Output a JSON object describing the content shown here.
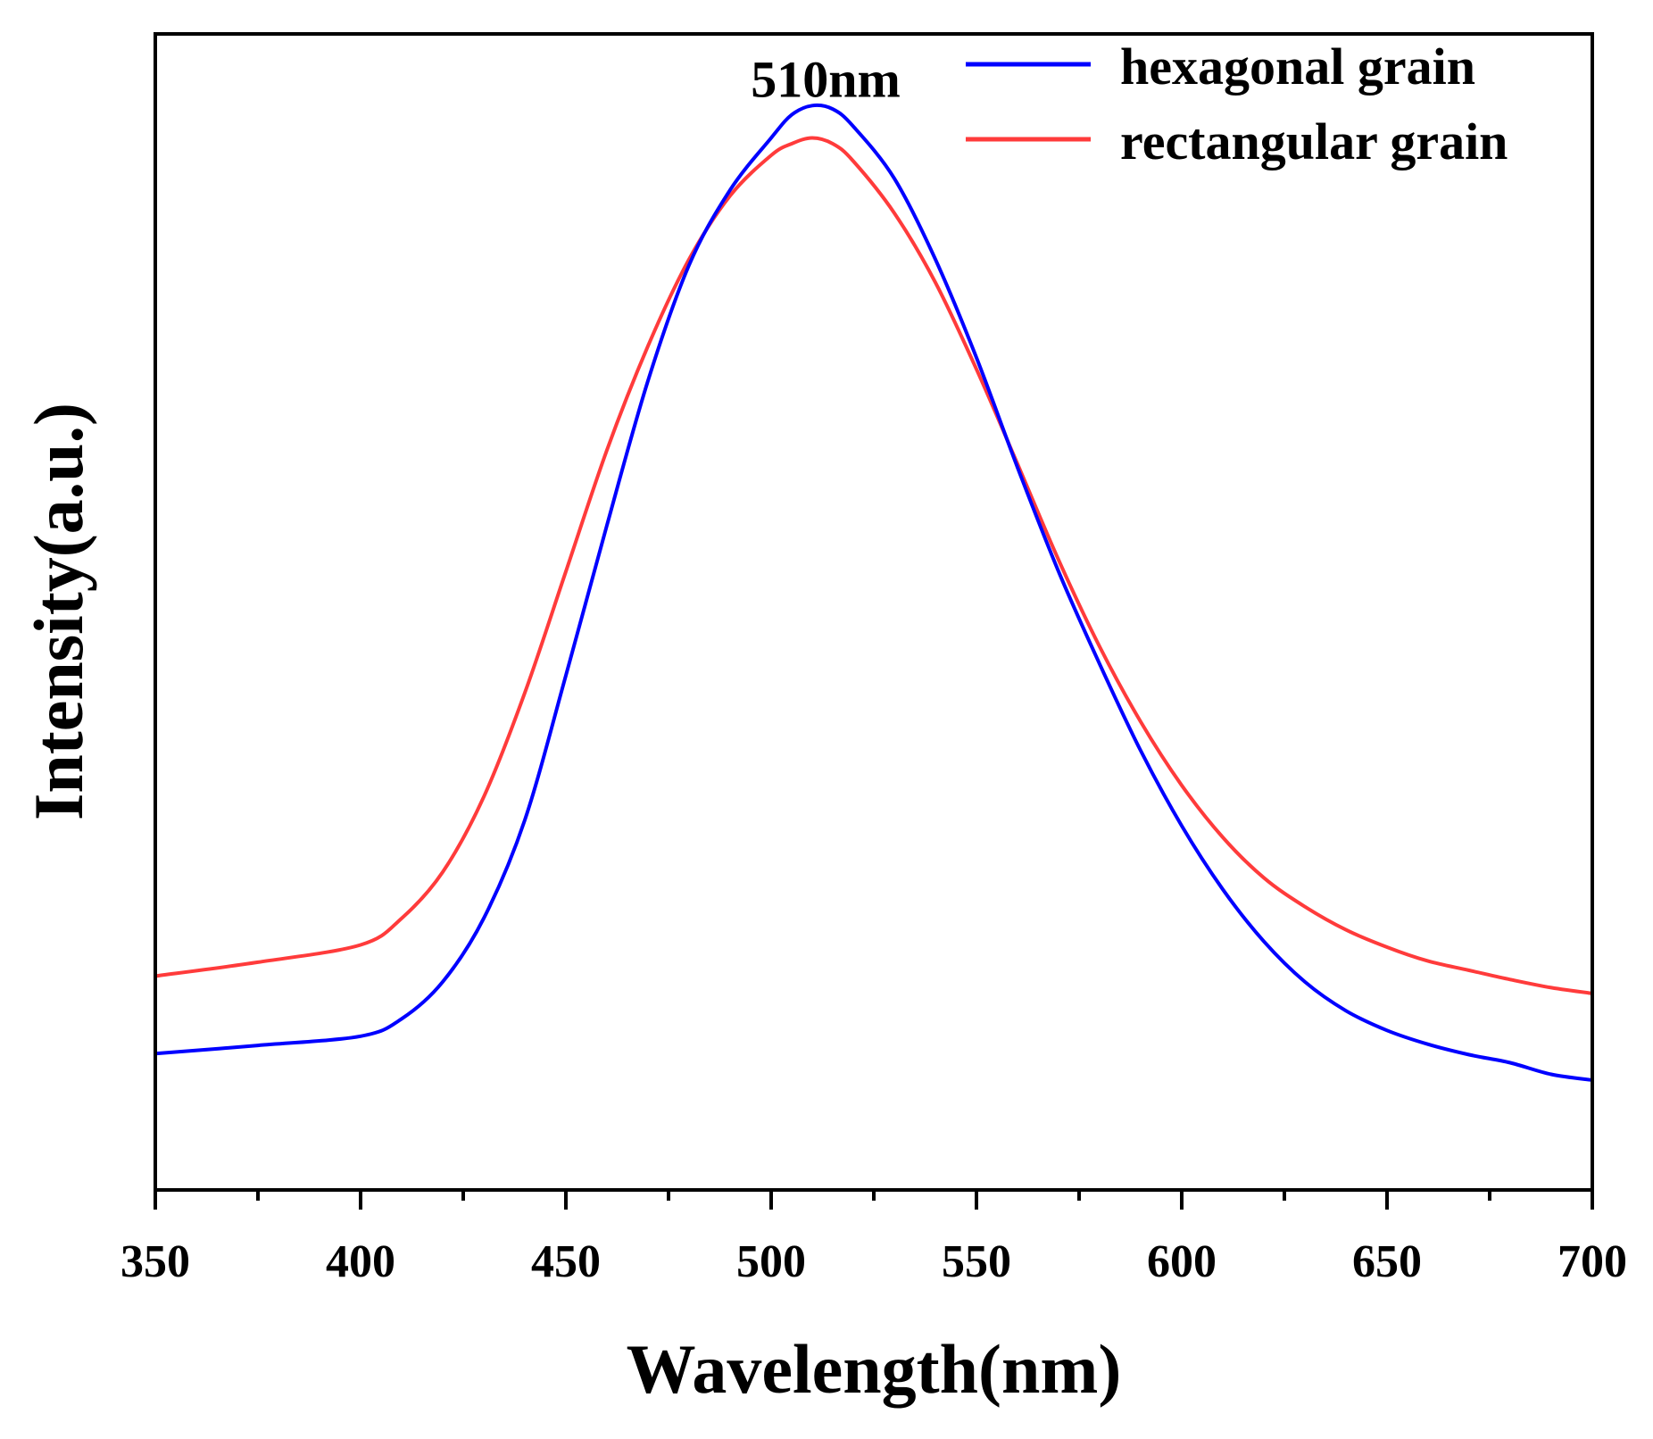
{
  "chart_data": {
    "type": "line",
    "title": "",
    "xlabel": "Wavelength(nm)",
    "ylabel": "Intensity(a.u.)",
    "xlim": [
      350,
      700
    ],
    "ylim": [
      0,
      1
    ],
    "xticks": [
      350,
      400,
      450,
      500,
      550,
      600,
      650,
      700
    ],
    "xtick_labels": [
      "350",
      "400",
      "450",
      "500",
      "550",
      "600",
      "650",
      "700"
    ],
    "yticks_shown": false,
    "legend_position": "top-right",
    "annotations": [
      {
        "text": "510nm",
        "x": 510,
        "y": 0.93
      }
    ],
    "series": [
      {
        "name": "hexagonal grain",
        "color": "#0000ff",
        "x": [
          350,
          375,
          400,
          410,
          420,
          430,
          440,
          450,
          460,
          470,
          480,
          490,
          500,
          505,
          510,
          515,
          520,
          530,
          540,
          550,
          560,
          570,
          580,
          590,
          600,
          610,
          620,
          630,
          640,
          650,
          660,
          670,
          680,
          690,
          700
        ],
        "y": [
          0.118,
          0.125,
          0.133,
          0.148,
          0.18,
          0.235,
          0.32,
          0.445,
          0.575,
          0.7,
          0.8,
          0.865,
          0.91,
          0.93,
          0.938,
          0.935,
          0.92,
          0.875,
          0.805,
          0.72,
          0.625,
          0.535,
          0.455,
          0.38,
          0.315,
          0.26,
          0.215,
          0.18,
          0.155,
          0.138,
          0.126,
          0.117,
          0.11,
          0.1,
          0.095
        ]
      },
      {
        "name": "rectangular grain",
        "color": "#ff3b3b",
        "x": [
          350,
          375,
          400,
          410,
          420,
          430,
          440,
          450,
          460,
          470,
          480,
          490,
          500,
          505,
          510,
          515,
          520,
          530,
          540,
          550,
          560,
          570,
          580,
          590,
          600,
          610,
          620,
          630,
          640,
          650,
          660,
          670,
          680,
          690,
          700
        ],
        "y": [
          0.185,
          0.197,
          0.212,
          0.235,
          0.275,
          0.34,
          0.43,
          0.535,
          0.64,
          0.73,
          0.805,
          0.86,
          0.895,
          0.905,
          0.91,
          0.905,
          0.89,
          0.845,
          0.785,
          0.71,
          0.628,
          0.545,
          0.47,
          0.405,
          0.35,
          0.305,
          0.27,
          0.245,
          0.225,
          0.21,
          0.198,
          0.19,
          0.182,
          0.175,
          0.17
        ]
      }
    ]
  }
}
